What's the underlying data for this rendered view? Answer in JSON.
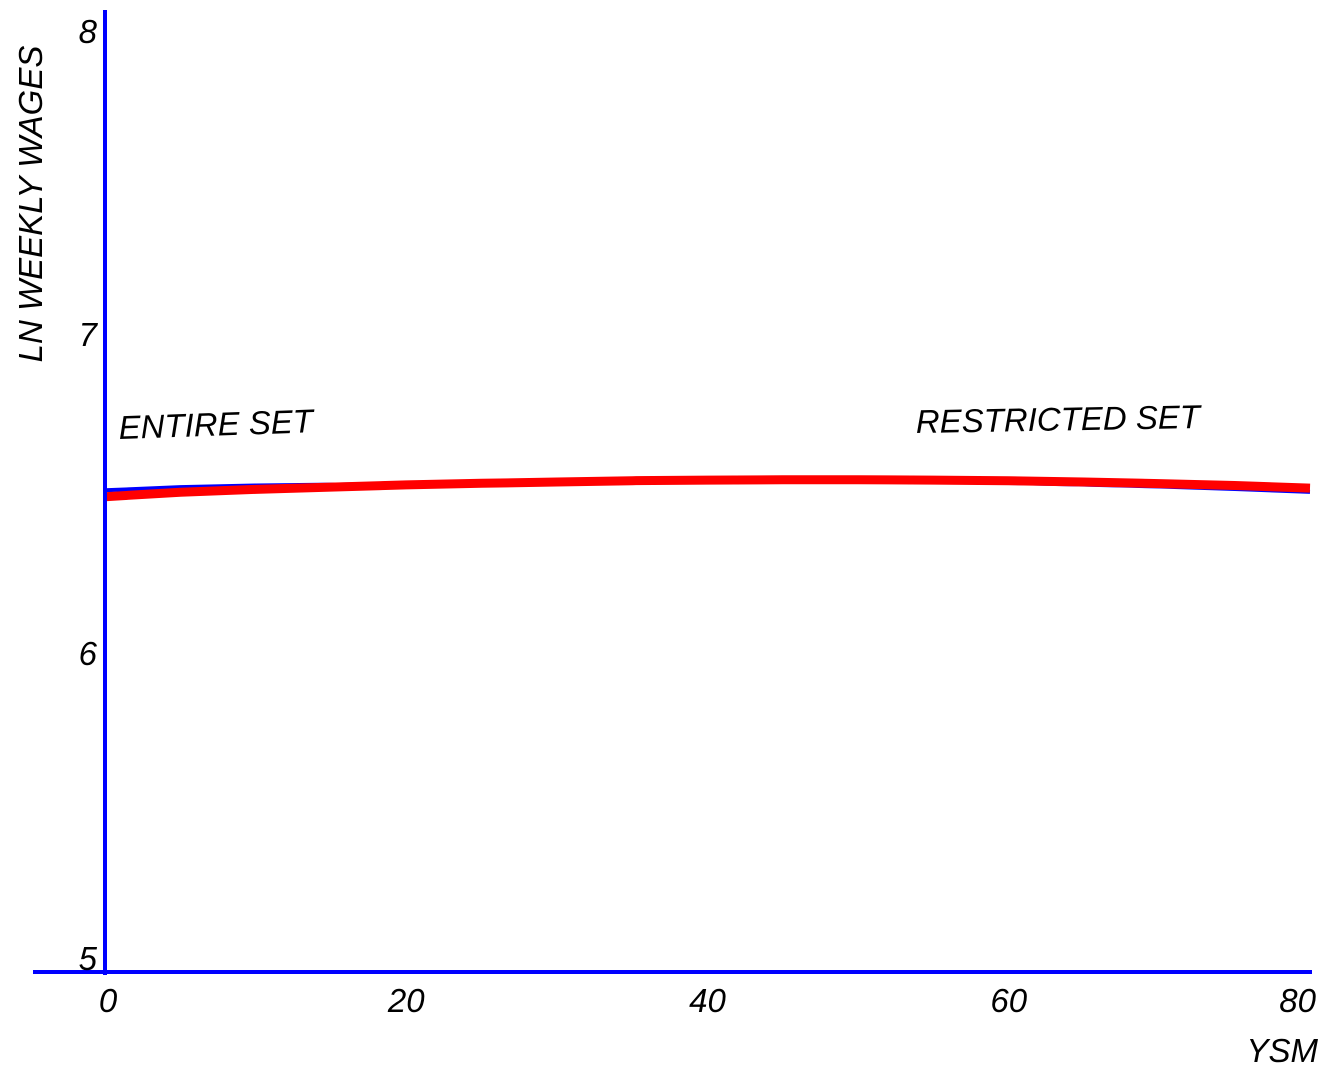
{
  "chart_data": {
    "type": "line",
    "title": "",
    "xlabel": "YSM",
    "ylabel": "LN WEEKLY WAGES",
    "xlim": [
      0,
      80
    ],
    "ylim": [
      5,
      8
    ],
    "x_ticks": [
      "0",
      "20",
      "40",
      "60",
      "80"
    ],
    "y_ticks": [
      "5",
      "6",
      "7",
      "8"
    ],
    "grid": false,
    "colors": {
      "axis": "#0000ff",
      "series_entire": "#0000ff",
      "series_restricted": "#ff0000"
    },
    "annotations": [
      {
        "text": "ENTIRE SET"
      },
      {
        "text": "RESTRICTED SET"
      }
    ],
    "series": [
      {
        "key": "entire",
        "x": [
          0,
          5,
          10,
          15,
          20,
          25,
          30,
          35,
          40,
          45,
          50,
          55,
          60,
          65,
          70,
          75,
          80
        ],
        "y": [
          6.51,
          6.52,
          6.525,
          6.528,
          6.531,
          6.534,
          6.536,
          6.538,
          6.539,
          6.539,
          6.538,
          6.536,
          6.533,
          6.528,
          6.522,
          6.514,
          6.505
        ]
      },
      {
        "key": "restricted",
        "x": [
          0,
          5,
          10,
          15,
          20,
          25,
          30,
          35,
          40,
          45,
          50,
          55,
          60,
          65,
          70,
          75,
          80
        ],
        "y": [
          6.49,
          6.504,
          6.513,
          6.52,
          6.527,
          6.532,
          6.536,
          6.54,
          6.542,
          6.543,
          6.543,
          6.542,
          6.54,
          6.536,
          6.531,
          6.525,
          6.517
        ]
      }
    ]
  }
}
